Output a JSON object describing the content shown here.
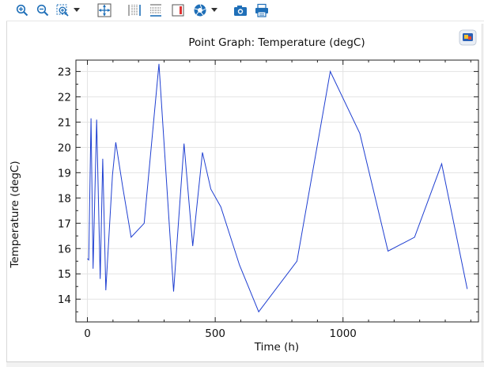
{
  "toolbar": {
    "buttons": [
      {
        "name": "zoom-in-button",
        "icon": "zoom-in-icon"
      },
      {
        "name": "zoom-out-button",
        "icon": "zoom-out-icon"
      },
      {
        "name": "zoom-box-button",
        "icon": "zoom-box-icon"
      },
      {
        "name": "zoom-dropdown-button",
        "icon": "chevron-down-icon"
      },
      {
        "name": "zoom-extents-button",
        "icon": "zoom-extents-icon"
      },
      {
        "name": "x-grid-button",
        "icon": "grid-vertical-icon"
      },
      {
        "name": "y-grid-button",
        "icon": "grid-horizontal-icon"
      },
      {
        "name": "legend-button",
        "icon": "legend-icon"
      },
      {
        "name": "color-table-button",
        "icon": "aperture-icon"
      },
      {
        "name": "color-dropdown-button",
        "icon": "chevron-down-icon"
      },
      {
        "name": "image-snapshot-button",
        "icon": "camera-icon"
      },
      {
        "name": "print-button",
        "icon": "printer-icon"
      }
    ],
    "accent_color": "#1f6fb8"
  },
  "chart_data": {
    "type": "line",
    "title": "Point Graph: Temperature (degC)",
    "xlabel": "Time (h)",
    "ylabel": "Temperature (degC)",
    "xlim": [
      -45,
      1530
    ],
    "ylim": [
      13.1,
      23.45
    ],
    "xticks": [
      0,
      500,
      1000
    ],
    "yticks": [
      14,
      15,
      16,
      17,
      18,
      19,
      20,
      21,
      22,
      23
    ],
    "grid": true,
    "line_color": "#1f3fd1",
    "series": [
      {
        "x": [
          0,
          5,
          14,
          22,
          36,
          50,
          60,
          72,
          98,
          111,
          138,
          171,
          222,
          280,
          337,
          378,
          412,
          450,
          483,
          522,
          595,
          670,
          820,
          950,
          1066,
          1176,
          1280,
          1386,
          1486
        ],
        "y": [
          15.6,
          15.55,
          21.15,
          15.2,
          21.1,
          14.8,
          19.55,
          14.35,
          18.9,
          20.2,
          18.45,
          16.45,
          17.0,
          23.3,
          14.3,
          20.15,
          16.1,
          19.8,
          18.35,
          17.65,
          15.35,
          13.5,
          15.5,
          23.0,
          20.55,
          15.9,
          16.45,
          19.35,
          14.4
        ]
      }
    ]
  }
}
